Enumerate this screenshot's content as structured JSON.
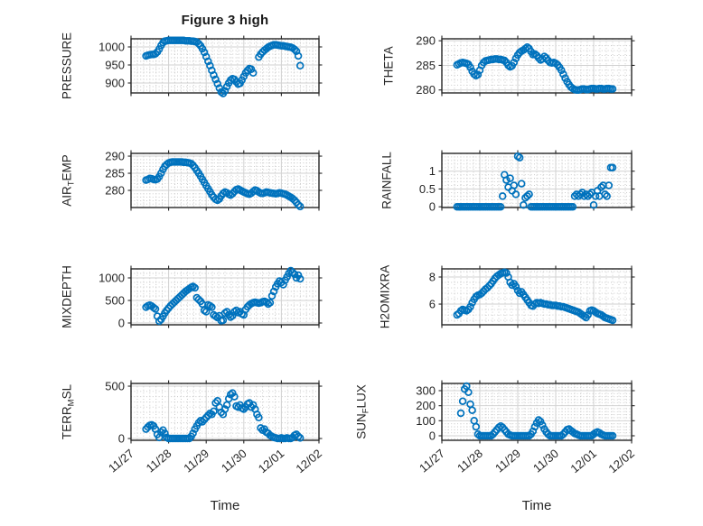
{
  "figure": {
    "title": "Figure 3 high",
    "xlabel": "Time"
  },
  "colors": {
    "marker": "#0072BD",
    "axis": "#262626",
    "text": "#262626",
    "grid_major": "#d2d2d2",
    "grid_minor": "#c6c6c6",
    "background": "#ffffff"
  },
  "chart_data": {
    "type": "scatter",
    "title": "Figure 3 high",
    "x_axis": {
      "label": "Time",
      "lim": [
        0,
        5
      ],
      "tick_values": [
        0,
        1,
        2,
        3,
        4,
        5
      ],
      "tick_labels": [
        "11/27",
        "11/28",
        "11/29",
        "11/30",
        "12/01",
        "12/02"
      ],
      "minor_divisions": 6
    },
    "marker": {
      "shape": "open-circle",
      "radius": 3.4,
      "stroke_width": 1.7
    },
    "plots": [
      {
        "name": "PRESSURE",
        "ylabel_parts": [
          {
            "t": "PRESSURE",
            "sub": false
          }
        ],
        "yticks": [
          900,
          950,
          1000
        ],
        "ylim": [
          872.5,
          1022.5
        ],
        "yminor": 10,
        "x0": 0.4,
        "dx": 0.05,
        "y": [
          975,
          977,
          978,
          979,
          979,
          981,
          986,
          994,
          1004,
          1012,
          1016,
          1017,
          1018,
          1018,
          1018,
          1018,
          1018,
          1018,
          1018,
          1018,
          1018,
          1017,
          1017,
          1017,
          1016,
          1016,
          1015,
          1013,
          1009,
          1003,
          995,
          985,
          973,
          960,
          948,
          935,
          922,
          910,
          898,
          886,
          875,
          871,
          878,
          890,
          900,
          908,
          912,
          910,
          903,
          897,
          899,
          908,
          918,
          928,
          935,
          940,
          938,
          928,
          null,
          null,
          972,
          980,
          986,
          991,
          995,
          999,
          1002,
          1004,
          1006,
          1006,
          1005,
          1004,
          1003,
          1003,
          1002,
          1001,
          1000,
          999,
          997,
          993,
          988,
          975,
          948
        ]
      },
      {
        "name": "THETA",
        "ylabel_parts": [
          {
            "t": "THETA",
            "sub": false
          }
        ],
        "yticks": [
          280,
          285,
          290
        ],
        "ylim": [
          279.4,
          290.4
        ],
        "yminor": 1,
        "x0": 0.4,
        "dx": 0.05,
        "y": [
          285.1,
          285.3,
          285.5,
          285.6,
          285.5,
          285.4,
          285.2,
          284.6,
          283.8,
          283.2,
          282.9,
          283.1,
          284.0,
          285.0,
          285.6,
          285.9,
          286.0,
          286.1,
          286.2,
          286.2,
          286.3,
          286.3,
          286.2,
          286.2,
          286.1,
          286.0,
          285.6,
          285.0,
          284.7,
          284.9,
          285.6,
          286.4,
          287.1,
          287.6,
          287.9,
          288.1,
          288.4,
          288.7,
          288.4,
          287.8,
          287.2,
          287.3,
          287.0,
          286.5,
          286.1,
          286.3,
          286.8,
          286.5,
          286.0,
          285.6,
          285.5,
          285.6,
          285.4,
          285.1,
          284.6,
          284.0,
          283.2,
          282.4,
          281.7,
          281.1,
          280.6,
          280.3,
          280.1,
          280.0,
          280.0,
          280.1,
          280.2,
          280.2,
          280.1,
          280.1,
          280.2,
          280.3,
          280.3,
          280.2,
          280.2,
          280.3,
          280.3,
          280.2,
          280.2,
          280.3,
          280.3,
          280.2,
          280.2
        ]
      },
      {
        "name": "AIR_TEMP",
        "ylabel_parts": [
          {
            "t": "AIR",
            "sub": false
          },
          {
            "t": "T",
            "sub": true
          },
          {
            "t": "EMP",
            "sub": false
          }
        ],
        "yticks": [
          280,
          285,
          290
        ],
        "ylim": [
          275.0,
          290.8
        ],
        "yminor": 1,
        "x0": 0.4,
        "dx": 0.05,
        "y": [
          283.0,
          283.2,
          283.5,
          283.4,
          283.2,
          283.1,
          283.3,
          284.0,
          285.0,
          286.1,
          287.0,
          287.6,
          288.0,
          288.2,
          288.3,
          288.3,
          288.3,
          288.3,
          288.3,
          288.3,
          288.2,
          288.2,
          288.1,
          288.0,
          287.8,
          287.3,
          286.6,
          285.8,
          285.0,
          284.1,
          283.2,
          282.3,
          281.4,
          280.5,
          279.6,
          278.7,
          278.0,
          277.4,
          277.1,
          277.5,
          278.4,
          279.1,
          279.5,
          279.3,
          278.9,
          278.6,
          279.0,
          279.7,
          280.2,
          280.4,
          280.1,
          279.8,
          279.5,
          279.3,
          279.0,
          278.9,
          279.2,
          279.7,
          280.1,
          279.9,
          279.5,
          279.2,
          279.1,
          279.3,
          279.5,
          279.4,
          279.3,
          279.2,
          279.1,
          279.0,
          279.1,
          279.3,
          279.2,
          279.0,
          278.9,
          278.6,
          278.3,
          278.0,
          277.6,
          277.1,
          276.5,
          275.8,
          275.3
        ]
      },
      {
        "name": "RAINFALL",
        "ylabel_parts": [
          {
            "t": "RAINFALL",
            "sub": false
          }
        ],
        "yticks": [
          0,
          0.5,
          1
        ],
        "ylim": [
          -0.02,
          1.5
        ],
        "yminor": 0.1,
        "x0": 0.4,
        "dx": 0.05,
        "y": [
          0,
          0,
          0,
          0,
          0,
          0,
          0,
          0,
          0,
          0,
          0,
          0,
          0,
          0,
          0,
          0,
          0,
          0,
          0,
          0,
          0,
          0,
          0,
          0,
          0.3,
          0.9,
          0.75,
          0.55,
          0.8,
          0.45,
          0.6,
          0.35,
          1.42,
          1.38,
          0.65,
          0.05,
          0.25,
          0.3,
          0.35,
          0,
          0,
          0,
          0,
          0,
          0,
          0,
          0,
          0,
          0,
          0,
          0,
          0,
          0,
          0,
          0,
          0,
          0,
          0,
          0,
          0,
          0,
          0,
          0.3,
          0.35,
          0.3,
          0.35,
          0.4,
          0.3,
          0.35,
          0.3,
          0.35,
          0.4,
          0.05,
          0.3,
          0.45,
          0.3,
          0.55,
          0.6,
          0.35,
          0.3,
          0.6,
          1.1,
          1.1
        ]
      },
      {
        "name": "MIXDEPTH",
        "ylabel_parts": [
          {
            "t": "MIXDEPTH",
            "sub": false
          }
        ],
        "yticks": [
          0,
          500,
          1000
        ],
        "ylim": [
          -40,
          1200
        ],
        "yminor": 100,
        "x0": 0.4,
        "dx": 0.05,
        "y": [
          350,
          380,
          395,
          375,
          340,
          310,
          150,
          40,
          80,
          150,
          220,
          280,
          330,
          380,
          420,
          460,
          500,
          540,
          580,
          620,
          660,
          700,
          730,
          760,
          790,
          810,
          780,
          560,
          520,
          480,
          420,
          280,
          250,
          400,
          380,
          350,
          180,
          150,
          120,
          160,
          50,
          60,
          220,
          250,
          180,
          130,
          160,
          250,
          280,
          230,
          250,
          200,
          180,
          300,
          360,
          400,
          430,
          450,
          460,
          450,
          440,
          450,
          470,
          480,
          460,
          420,
          450,
          600,
          700,
          800,
          870,
          930,
          900,
          850,
          950,
          1020,
          1100,
          1160,
          1120,
          1080,
          1000,
          1060,
          980
        ]
      },
      {
        "name": "H2OMIXRA",
        "ylabel_parts": [
          {
            "t": "H2OMIXRA",
            "sub": false
          }
        ],
        "yticks": [
          6,
          8
        ],
        "ylim": [
          4.47,
          8.6
        ],
        "yminor": 0.4,
        "x0": 0.4,
        "dx": 0.05,
        "y": [
          5.2,
          5.3,
          5.5,
          5.6,
          5.55,
          5.5,
          5.6,
          5.8,
          6.1,
          6.35,
          6.55,
          6.65,
          6.7,
          6.8,
          6.95,
          7.1,
          7.2,
          7.35,
          7.5,
          7.7,
          7.9,
          8.05,
          8.15,
          8.25,
          8.3,
          8.35,
          8.3,
          8.0,
          7.6,
          7.4,
          7.5,
          7.3,
          7.0,
          6.8,
          6.9,
          6.7,
          6.5,
          6.3,
          6.1,
          5.9,
          5.85,
          6.0,
          6.1,
          6.05,
          6.1,
          6.05,
          6.0,
          6.0,
          5.95,
          5.95,
          5.9,
          5.9,
          5.9,
          5.85,
          5.85,
          5.8,
          5.8,
          5.75,
          5.7,
          5.65,
          5.6,
          5.55,
          5.5,
          5.45,
          5.4,
          5.3,
          5.2,
          5.1,
          5.0,
          5.2,
          5.5,
          5.55,
          5.5,
          5.4,
          5.3,
          5.25,
          5.2,
          5.1,
          5.0,
          4.95,
          4.9,
          4.85,
          4.8
        ]
      },
      {
        "name": "TERR_MSL",
        "ylabel_parts": [
          {
            "t": "TERR",
            "sub": false
          },
          {
            "t": "M",
            "sub": true
          },
          {
            "t": "SL",
            "sub": false
          }
        ],
        "yticks": [
          0,
          500
        ],
        "ylim": [
          -17,
          526
        ],
        "yminor": 50,
        "x0": 0.4,
        "dx": 0.05,
        "y": [
          90,
          110,
          125,
          130,
          120,
          90,
          40,
          10,
          60,
          80,
          50,
          10,
          0,
          0,
          0,
          0,
          0,
          0,
          0,
          0,
          0,
          0,
          0,
          0,
          20,
          50,
          90,
          120,
          150,
          170,
          160,
          180,
          200,
          220,
          240,
          230,
          260,
          340,
          360,
          300,
          250,
          230,
          280,
          320,
          380,
          420,
          435,
          400,
          310,
          300,
          320,
          290,
          280,
          300,
          330,
          340,
          300,
          320,
          280,
          230,
          200,
          100,
          80,
          90,
          60,
          50,
          30,
          20,
          10,
          5,
          0,
          0,
          5,
          0,
          0,
          5,
          0,
          0,
          10,
          30,
          40,
          20,
          5
        ]
      },
      {
        "name": "SUN_FLUX",
        "ylabel_parts": [
          {
            "t": "SUN",
            "sub": false
          },
          {
            "t": "F",
            "sub": true
          },
          {
            "t": "LUX",
            "sub": false
          }
        ],
        "yticks": [
          0,
          100,
          200,
          300
        ],
        "ylim": [
          -30,
          348
        ],
        "yminor": 20,
        "x0": 0.4,
        "dx": 0.05,
        "y": [
          null,
          null,
          150,
          230,
          310,
          330,
          290,
          210,
          170,
          100,
          60,
          10,
          0,
          0,
          0,
          0,
          0,
          0,
          0,
          10,
          25,
          40,
          55,
          65,
          55,
          40,
          25,
          10,
          5,
          0,
          0,
          0,
          0,
          0,
          0,
          0,
          0,
          0,
          0,
          10,
          30,
          60,
          85,
          105,
          95,
          70,
          45,
          25,
          10,
          0,
          0,
          0,
          0,
          0,
          0,
          0,
          10,
          25,
          40,
          45,
          35,
          25,
          15,
          10,
          5,
          0,
          0,
          0,
          0,
          0,
          0,
          0,
          10,
          20,
          25,
          20,
          10,
          5,
          0,
          0,
          0,
          0,
          0
        ]
      }
    ]
  }
}
